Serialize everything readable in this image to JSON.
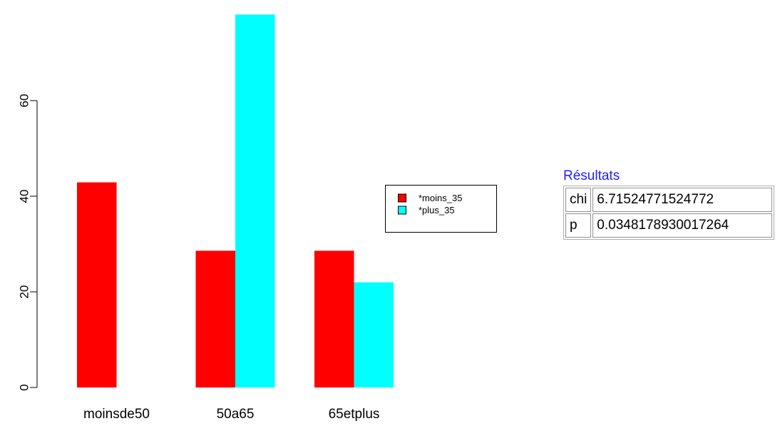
{
  "chart_data": {
    "type": "bar",
    "categories": [
      "moinsde50",
      "50a65",
      "65etplus"
    ],
    "series": [
      {
        "name": "*moins_35",
        "color": "#ff0000",
        "values": [
          42.9,
          28.6,
          28.6
        ]
      },
      {
        "name": "*plus_35",
        "color": "#00ffff",
        "values": [
          0,
          78.0,
          22.0
        ]
      }
    ],
    "yticks": [
      0,
      20,
      40,
      60
    ],
    "ylim": [
      0,
      78
    ],
    "title": "",
    "xlabel": "",
    "ylabel": "",
    "legend_position": "right"
  },
  "results": {
    "title": "Résultats",
    "rows": [
      {
        "label": "chi",
        "value": "6.71524771524772"
      },
      {
        "label": "p",
        "value": "0.0348178930017264"
      }
    ]
  }
}
